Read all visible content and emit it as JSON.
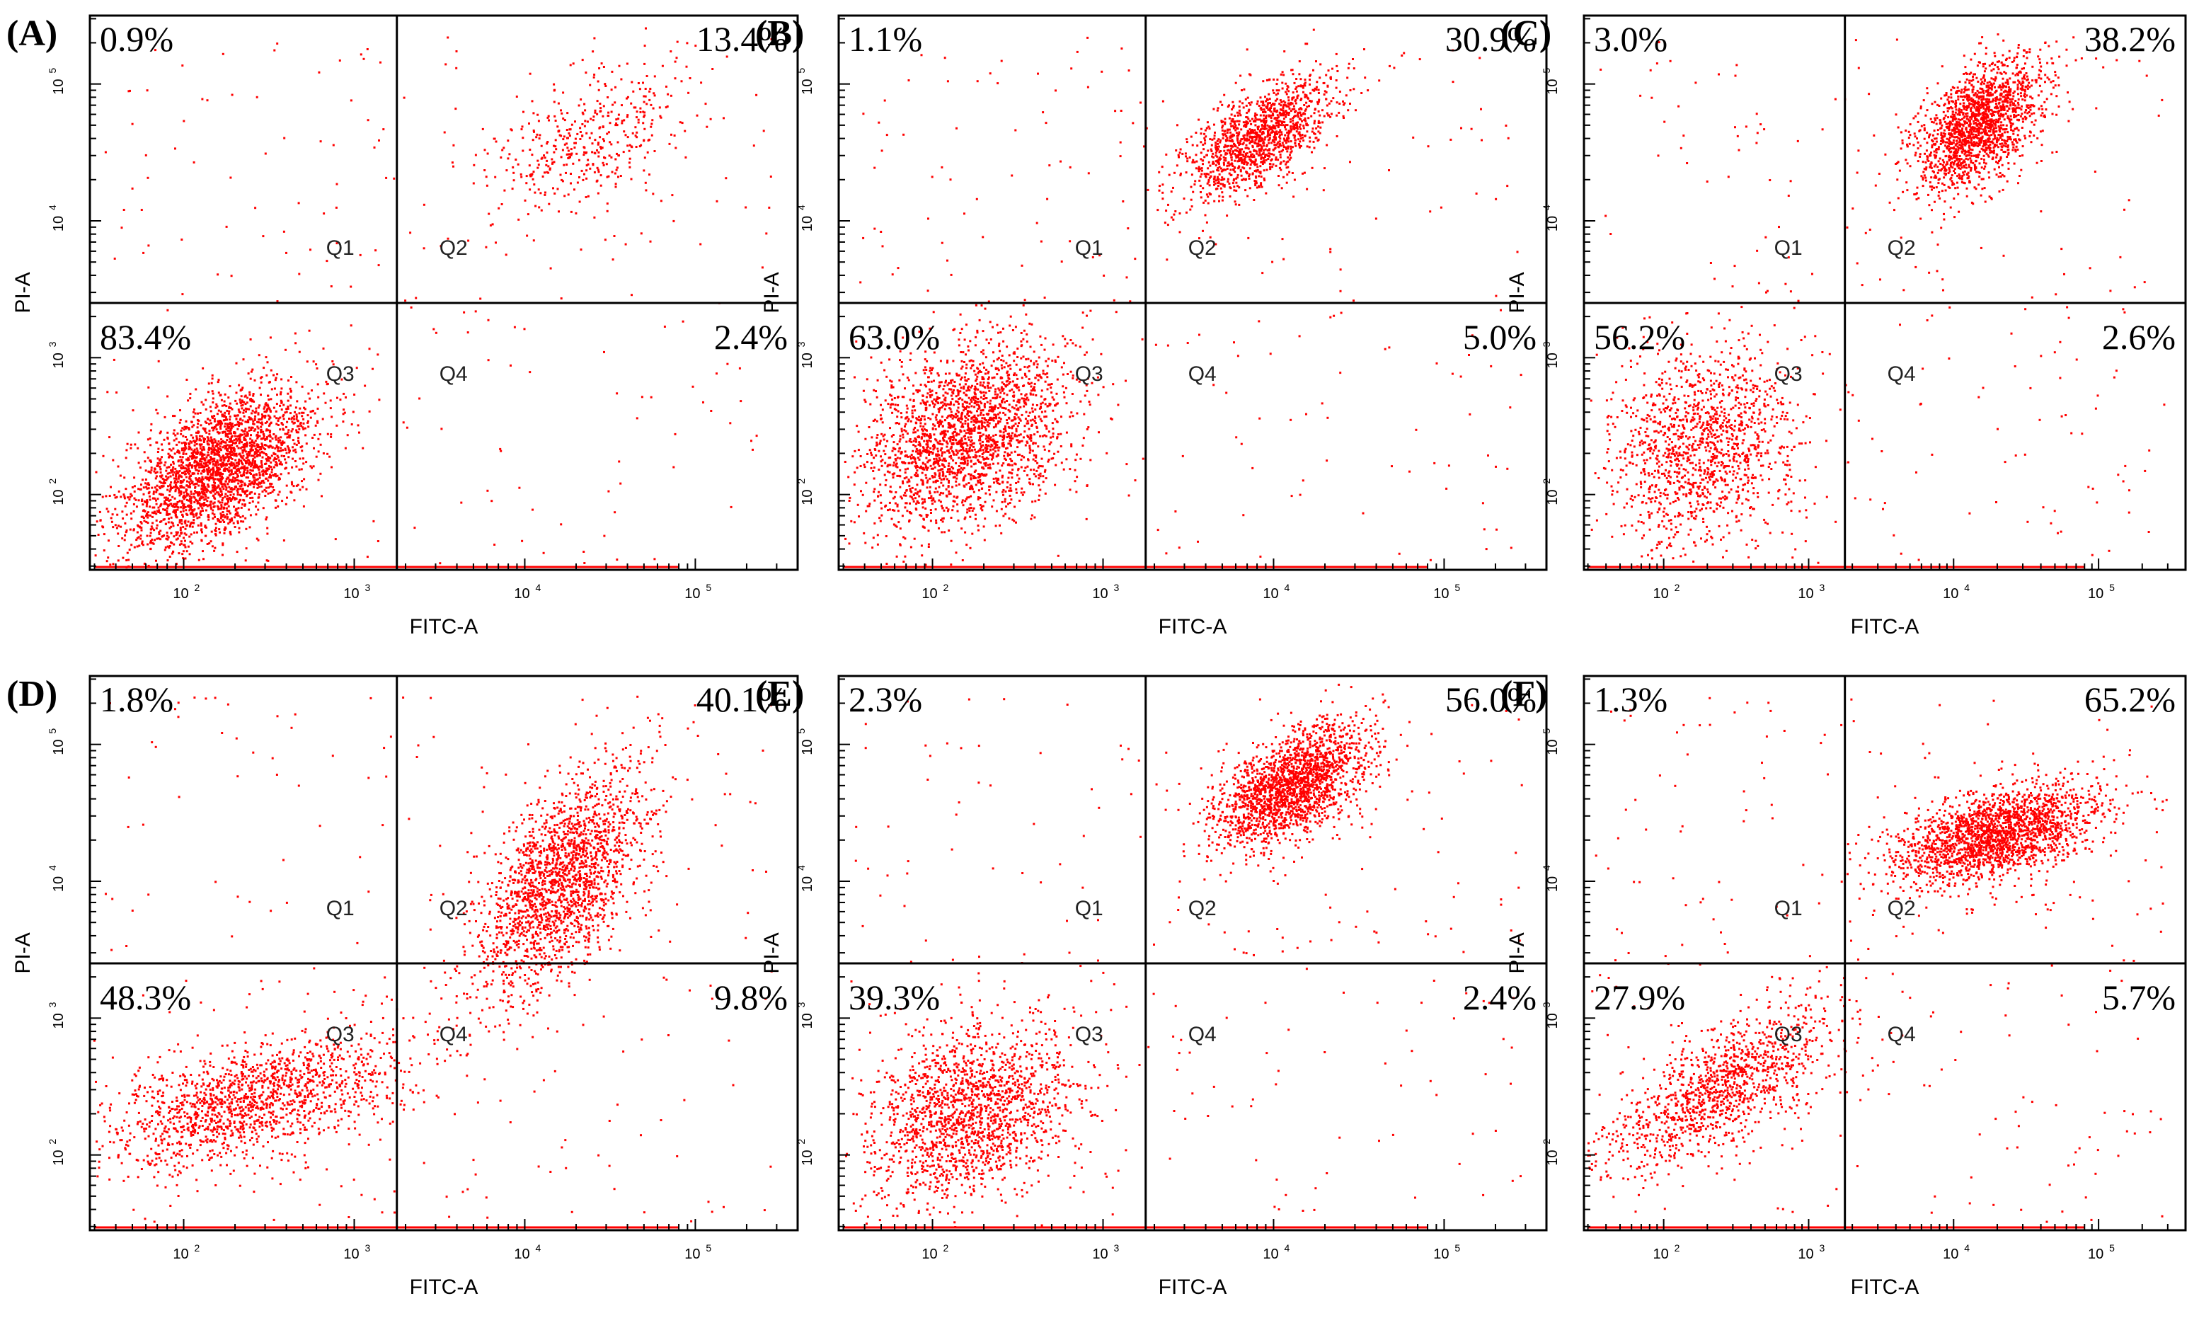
{
  "figure": {
    "background": "#ffffff",
    "dot_color": "#ff0000",
    "line_color": "#000000"
  },
  "chart_data": [
    {
      "type": "scatter",
      "panel_label": "(A)",
      "xlabel": "FITC-A",
      "ylabel": "PI-A",
      "xticks": [
        "10",
        "10",
        "10",
        "10"
      ],
      "xtick_exponents": [
        "2",
        "3",
        "4",
        "5"
      ],
      "yticks": [
        "10",
        "10",
        "10",
        "10"
      ],
      "ytick_exponents": [
        "2",
        "3",
        "4",
        "5"
      ],
      "xlim_log10": [
        1.45,
        5.6
      ],
      "ylim_log10": [
        1.45,
        5.5
      ],
      "gate_log10": {
        "x": 3.25,
        "y": 3.4
      },
      "quadrants": [
        {
          "name": "Q1",
          "percent": "0.9%"
        },
        {
          "name": "Q2",
          "percent": "13.4%"
        },
        {
          "name": "Q3",
          "percent": "83.4%"
        },
        {
          "name": "Q4",
          "percent": "2.4%"
        }
      ]
    },
    {
      "type": "scatter",
      "panel_label": "(B)",
      "xlabel": "FITC-A",
      "ylabel": "PI-A",
      "xticks": [
        "10",
        "10",
        "10",
        "10"
      ],
      "xtick_exponents": [
        "2",
        "3",
        "4",
        "5"
      ],
      "yticks": [
        "10",
        "10",
        "10",
        "10"
      ],
      "ytick_exponents": [
        "2",
        "3",
        "4",
        "5"
      ],
      "xlim_log10": [
        1.45,
        5.6
      ],
      "ylim_log10": [
        1.45,
        5.5
      ],
      "gate_log10": {
        "x": 3.25,
        "y": 3.4
      },
      "quadrants": [
        {
          "name": "Q1",
          "percent": "1.1%"
        },
        {
          "name": "Q2",
          "percent": "30.9%"
        },
        {
          "name": "Q3",
          "percent": "63.0%"
        },
        {
          "name": "Q4",
          "percent": "5.0%"
        }
      ]
    },
    {
      "type": "scatter",
      "panel_label": "(C)",
      "xlabel": "FITC-A",
      "ylabel": "PI-A",
      "xticks": [
        "10",
        "10",
        "10",
        "10"
      ],
      "xtick_exponents": [
        "2",
        "3",
        "4",
        "5"
      ],
      "yticks": [
        "10",
        "10",
        "10",
        "10"
      ],
      "ytick_exponents": [
        "2",
        "3",
        "4",
        "5"
      ],
      "xlim_log10": [
        1.45,
        5.6
      ],
      "ylim_log10": [
        1.45,
        5.5
      ],
      "gate_log10": {
        "x": 3.25,
        "y": 3.4
      },
      "quadrants": [
        {
          "name": "Q1",
          "percent": "3.0%"
        },
        {
          "name": "Q2",
          "percent": "38.2%"
        },
        {
          "name": "Q3",
          "percent": "56.2%"
        },
        {
          "name": "Q4",
          "percent": "2.6%"
        }
      ]
    },
    {
      "type": "scatter",
      "panel_label": "(D)",
      "xlabel": "FITC-A",
      "ylabel": "PI-A",
      "xticks": [
        "10",
        "10",
        "10",
        "10"
      ],
      "xtick_exponents": [
        "2",
        "3",
        "4",
        "5"
      ],
      "yticks": [
        "10",
        "10",
        "10",
        "10"
      ],
      "ytick_exponents": [
        "2",
        "3",
        "4",
        "5"
      ],
      "xlim_log10": [
        1.45,
        5.6
      ],
      "ylim_log10": [
        1.45,
        5.5
      ],
      "gate_log10": {
        "x": 3.25,
        "y": 3.4
      },
      "quadrants": [
        {
          "name": "Q1",
          "percent": "1.8%"
        },
        {
          "name": "Q2",
          "percent": "40.1%"
        },
        {
          "name": "Q3",
          "percent": "48.3%"
        },
        {
          "name": "Q4",
          "percent": "9.8%"
        }
      ]
    },
    {
      "type": "scatter",
      "panel_label": "(E)",
      "xlabel": "FITC-A",
      "ylabel": "PI-A",
      "xticks": [
        "10",
        "10",
        "10",
        "10"
      ],
      "xtick_exponents": [
        "2",
        "3",
        "4",
        "5"
      ],
      "yticks": [
        "10",
        "10",
        "10",
        "10"
      ],
      "ytick_exponents": [
        "2",
        "3",
        "4",
        "5"
      ],
      "xlim_log10": [
        1.45,
        5.6
      ],
      "ylim_log10": [
        1.45,
        5.5
      ],
      "gate_log10": {
        "x": 3.25,
        "y": 3.4
      },
      "quadrants": [
        {
          "name": "Q1",
          "percent": "2.3%"
        },
        {
          "name": "Q2",
          "percent": "56.0%"
        },
        {
          "name": "Q3",
          "percent": "39.3%"
        },
        {
          "name": "Q4",
          "percent": "2.4%"
        }
      ]
    },
    {
      "type": "scatter",
      "panel_label": "(F)",
      "xlabel": "FITC-A",
      "ylabel": "PI-A",
      "xticks": [
        "10",
        "10",
        "10",
        "10"
      ],
      "xtick_exponents": [
        "2",
        "3",
        "4",
        "5"
      ],
      "yticks": [
        "10",
        "10",
        "10",
        "10"
      ],
      "ytick_exponents": [
        "2",
        "3",
        "4",
        "5"
      ],
      "xlim_log10": [
        1.45,
        5.6
      ],
      "ylim_log10": [
        1.45,
        5.5
      ],
      "gate_log10": {
        "x": 3.25,
        "y": 3.4
      },
      "quadrants": [
        {
          "name": "Q1",
          "percent": "1.3%"
        },
        {
          "name": "Q2",
          "percent": "65.2%"
        },
        {
          "name": "Q3",
          "percent": "27.9%"
        },
        {
          "name": "Q4",
          "percent": "5.7%"
        }
      ]
    }
  ]
}
